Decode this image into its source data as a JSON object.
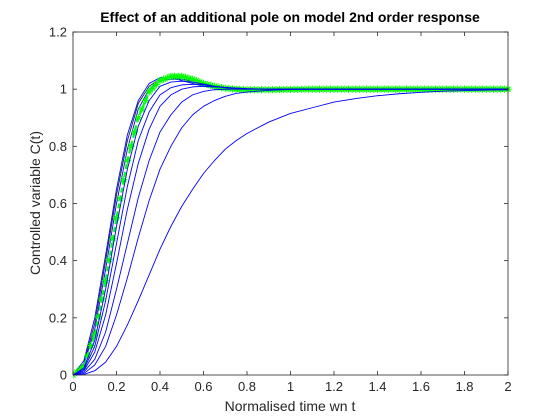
{
  "chart_data": {
    "type": "line",
    "title": "Effect of an additional pole on model 2nd order response",
    "xlabel": "Normalised time wn t",
    "ylabel": "Controlled variable C(t)",
    "xlim": [
      0,
      2
    ],
    "ylim": [
      0,
      1.2
    ],
    "xticks": [
      0,
      0.2,
      0.4,
      0.6,
      0.8,
      1,
      1.2,
      1.4,
      1.6,
      1.8,
      2
    ],
    "xtick_labels": [
      "0",
      "0.2",
      "0.4",
      "0.6",
      "0.8",
      "1",
      "1.2",
      "1.4",
      "1.6",
      "1.8",
      "2"
    ],
    "yticks": [
      0,
      0.2,
      0.4,
      0.6,
      0.8,
      1,
      1.2
    ],
    "ytick_labels": [
      "0",
      "0.2",
      "0.4",
      "0.6",
      "0.8",
      "1",
      "1.2"
    ],
    "grid": false,
    "legend": false,
    "colors": {
      "blue_curves": "#0000ff",
      "reference": "#00ff00",
      "axes": "#262626",
      "dark_curve": "#1a1a40"
    },
    "x": [
      0,
      0.05,
      0.1,
      0.15,
      0.2,
      0.25,
      0.3,
      0.35,
      0.4,
      0.45,
      0.5,
      0.55,
      0.6,
      0.65,
      0.7,
      0.75,
      0.8,
      0.9,
      1.0,
      1.1,
      1.2,
      1.3,
      1.4,
      1.5,
      1.6,
      1.7,
      1.8,
      1.9,
      2.0
    ],
    "series": [
      {
        "color": "#0000ff",
        "marker": "none",
        "values": [
          0,
          0.05,
          0.2,
          0.42,
          0.65,
          0.84,
          0.96,
          1.02,
          1.04,
          1.04,
          1.03,
          1.02,
          1.01,
          1.005,
          1.0,
          1.0,
          1.0,
          1.0,
          1.0,
          1.0,
          1.0,
          1.0,
          1.0,
          1.0,
          1.0,
          1.0,
          1.0,
          1.0,
          1.0
        ]
      },
      {
        "color": "#1a1a40",
        "marker": "none",
        "values": [
          0,
          0.04,
          0.18,
          0.4,
          0.63,
          0.82,
          0.95,
          1.01,
          1.035,
          1.04,
          1.035,
          1.025,
          1.015,
          1.008,
          1.003,
          1.0,
          1.0,
          1.0,
          1.0,
          1.0,
          1.0,
          1.0,
          1.0,
          1.0,
          1.0,
          1.0,
          1.0,
          1.0,
          1.0
        ]
      },
      {
        "color": "#0000ff",
        "marker": "none",
        "values": [
          0,
          0.035,
          0.16,
          0.37,
          0.6,
          0.79,
          0.93,
          1.0,
          1.03,
          1.035,
          1.035,
          1.03,
          1.02,
          1.012,
          1.006,
          1.002,
          1.0,
          1.0,
          1.0,
          1.0,
          1.0,
          1.0,
          1.0,
          1.0,
          1.0,
          1.0,
          1.0,
          1.0,
          1.0
        ]
      },
      {
        "color": "#00ff00",
        "marker": "asterisk",
        "values": [
          0,
          0.03,
          0.14,
          0.33,
          0.55,
          0.75,
          0.9,
          0.99,
          1.03,
          1.045,
          1.045,
          1.035,
          1.02,
          1.01,
          1.003,
          1.0,
          0.998,
          0.998,
          0.999,
          1.0,
          1.0,
          1.0,
          1.0,
          1.0,
          1.0,
          1.0,
          1.0,
          1.0,
          1.0
        ]
      },
      {
        "color": "#0000ff",
        "marker": "none",
        "values": [
          0,
          0.025,
          0.12,
          0.3,
          0.52,
          0.72,
          0.87,
          0.96,
          1.01,
          1.025,
          1.028,
          1.025,
          1.018,
          1.01,
          1.005,
          1.002,
          1.0,
          1.0,
          1.0,
          1.0,
          1.0,
          1.0,
          1.0,
          1.0,
          1.0,
          1.0,
          1.0,
          1.0,
          1.0
        ]
      },
      {
        "color": "#0000ff",
        "marker": "none",
        "values": [
          0,
          0.02,
          0.1,
          0.26,
          0.46,
          0.66,
          0.82,
          0.92,
          0.98,
          1.005,
          1.015,
          1.017,
          1.015,
          1.01,
          1.006,
          1.003,
          1.001,
          1.0,
          1.0,
          1.0,
          1.0,
          1.0,
          1.0,
          1.0,
          1.0,
          1.0,
          1.0,
          1.0,
          1.0
        ]
      },
      {
        "color": "#0000ff",
        "marker": "none",
        "values": [
          0,
          0.015,
          0.08,
          0.21,
          0.39,
          0.58,
          0.74,
          0.86,
          0.94,
          0.98,
          1.0,
          1.008,
          1.01,
          1.008,
          1.006,
          1.004,
          1.002,
          1.0,
          1.0,
          1.0,
          1.0,
          1.0,
          1.0,
          1.0,
          1.0,
          1.0,
          1.0,
          1.0,
          1.0
        ]
      },
      {
        "color": "#0000ff",
        "marker": "none",
        "values": [
          0,
          0.01,
          0.055,
          0.15,
          0.3,
          0.46,
          0.62,
          0.75,
          0.85,
          0.91,
          0.955,
          0.98,
          0.992,
          0.998,
          1.0,
          1.0,
          1.0,
          1.0,
          1.0,
          1.0,
          1.0,
          1.0,
          1.0,
          1.0,
          1.0,
          1.0,
          1.0,
          1.0,
          1.0
        ]
      },
      {
        "color": "#0000ff",
        "marker": "none",
        "values": [
          0,
          0.005,
          0.035,
          0.1,
          0.21,
          0.34,
          0.48,
          0.61,
          0.72,
          0.8,
          0.865,
          0.91,
          0.94,
          0.96,
          0.975,
          0.985,
          0.99,
          0.996,
          0.999,
          1.0,
          1.0,
          1.0,
          1.0,
          1.0,
          1.0,
          1.0,
          1.0,
          1.0,
          1.0
        ]
      },
      {
        "color": "#0000ff",
        "marker": "none",
        "values": [
          0,
          0.002,
          0.015,
          0.045,
          0.1,
          0.175,
          0.26,
          0.35,
          0.44,
          0.52,
          0.59,
          0.65,
          0.705,
          0.75,
          0.79,
          0.82,
          0.845,
          0.885,
          0.915,
          0.935,
          0.955,
          0.967,
          0.977,
          0.984,
          0.989,
          0.993,
          0.995,
          0.997,
          0.998
        ]
      }
    ]
  }
}
